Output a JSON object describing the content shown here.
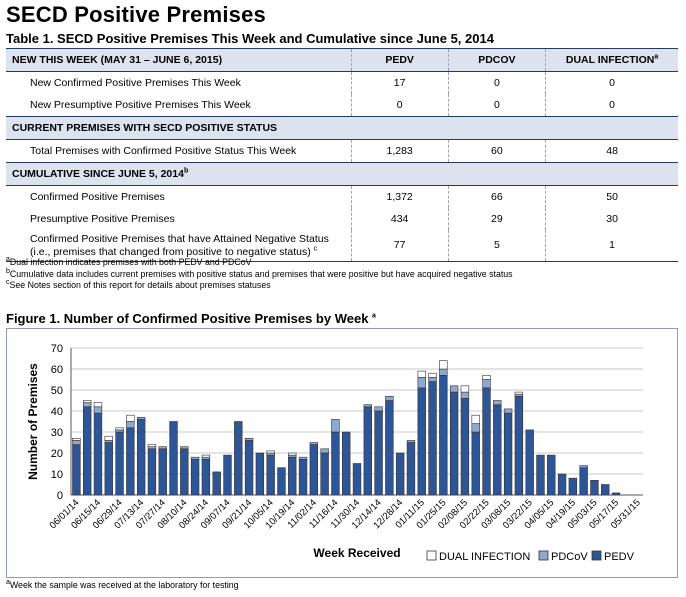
{
  "page": {
    "title": "SECD Positive Premises",
    "table_title": "Table 1. SECD Positive Premises This Week and Cumulative since June 5, 2014"
  },
  "table": {
    "header": {
      "label": "NEW THIS WEEK (MAY 31 – JUNE 6, 2015)",
      "col_pedv": "PEDV",
      "col_pdcov": "PDCOV",
      "col_dual": "DUAL INFECTION",
      "col_dual_sup": "a"
    },
    "new_this_week": [
      {
        "label": "New Confirmed Positive Premises This Week",
        "pedv": "17",
        "pdcov": "0",
        "dual": "0"
      },
      {
        "label": "New Presumptive Positive Premises This Week",
        "pedv": "0",
        "pdcov": "0",
        "dual": "0"
      }
    ],
    "current_section": {
      "label": "CURRENT PREMISES WITH SECD POSITIVE STATUS"
    },
    "current": [
      {
        "label": "Total Premises with Confirmed Positive Status This Week",
        "pedv": "1,283",
        "pdcov": "60",
        "dual": "48"
      }
    ],
    "cumulative_section": {
      "label": "CUMULATIVE SINCE JUNE 5, 2014",
      "sup": "b"
    },
    "cumulative": [
      {
        "label": "Confirmed Positive Premises",
        "pedv": "1,372",
        "pdcov": "66",
        "dual": "50"
      },
      {
        "label": "Presumptive Positive Premises",
        "pedv": "434",
        "pdcov": "29",
        "dual": "30"
      }
    ],
    "cumulative_last": {
      "label_line1": "Confirmed Positive Premises that have Attained Negative Status",
      "label_line2": "(i.e., premises that changed from positive to negative status)",
      "sup": "c",
      "pedv": "77",
      "pdcov": "5",
      "dual": "1"
    }
  },
  "notes": {
    "a_marker": "a",
    "a": "Dual infection indicates premises with both PEDV and PDCoV",
    "b_marker": "b",
    "b": "Cumulative data includes current premises with positive status and premises that were positive but have acquired negative status",
    "c_marker": "c",
    "c": "See Notes section of this report for details about premises statuses"
  },
  "figure": {
    "title": "Figure 1.  Number of Confirmed Positive Premises by Week",
    "title_sup": "a",
    "footnote_marker": "a",
    "footnote": "Week the sample was received at the laboratory for testing"
  },
  "chart_data": {
    "type": "bar",
    "stacked": true,
    "xlabel": "Week Received",
    "ylabel": "Number of Premises",
    "ylim": [
      0,
      70
    ],
    "yticks": [
      0,
      10,
      20,
      30,
      40,
      50,
      60,
      70
    ],
    "grid": true,
    "legend_position": "bottom-right",
    "colors": {
      "PEDV": "#2e5596",
      "PDCoV": "#8ea9cd",
      "DUAL INFECTION": "#ffffff",
      "edge": "#333333"
    },
    "xtick_labels": [
      "06/01/14",
      "06/15/14",
      "06/29/14",
      "07/13/14",
      "07/27/14",
      "08/10/14",
      "08/24/14",
      "09/07/14",
      "09/21/14",
      "10/05/14",
      "10/19/14",
      "11/02/14",
      "11/16/14",
      "11/30/14",
      "12/14/14",
      "12/28/14",
      "01/11/15",
      "01/25/15",
      "02/08/15",
      "02/22/15",
      "03/08/15",
      "03/22/15",
      "04/05/15",
      "04/19/15",
      "05/03/15",
      "05/17/15",
      "05/31/15"
    ],
    "series": [
      {
        "name": "PEDV",
        "values": [
          24,
          42,
          39,
          25,
          30,
          32,
          36,
          22,
          22,
          35,
          22,
          17,
          17,
          11,
          19,
          35,
          26,
          20,
          19,
          13,
          18,
          17,
          24,
          20,
          30,
          30,
          15,
          42,
          40,
          45,
          20,
          25,
          51,
          54,
          57,
          49,
          46,
          30,
          51,
          43,
          39,
          47,
          31,
          19,
          19,
          10,
          8,
          13,
          7,
          5,
          1,
          0,
          0
        ]
      },
      {
        "name": "PDCoV",
        "values": [
          2,
          2,
          3,
          1,
          1,
          3,
          1,
          1,
          1,
          0,
          1,
          1,
          1,
          0,
          0,
          0,
          1,
          0,
          1,
          0,
          1,
          1,
          1,
          2,
          6,
          0,
          0,
          1,
          2,
          2,
          0,
          1,
          5,
          2,
          3,
          3,
          3,
          4,
          4,
          2,
          2,
          1,
          0,
          0,
          0,
          0,
          0,
          1,
          0,
          0,
          0,
          0,
          0
        ]
      },
      {
        "name": "DUAL INFECTION",
        "values": [
          1,
          1,
          2,
          2,
          1,
          3,
          0,
          1,
          0,
          0,
          0,
          0,
          1,
          0,
          0,
          0,
          0,
          0,
          1,
          0,
          1,
          0,
          0,
          0,
          0,
          0,
          0,
          0,
          0,
          0,
          0,
          0,
          3,
          2,
          4,
          0,
          3,
          4,
          2,
          0,
          0,
          1,
          0,
          0,
          0,
          0,
          0,
          0,
          0,
          0,
          0,
          0,
          0
        ]
      }
    ]
  }
}
